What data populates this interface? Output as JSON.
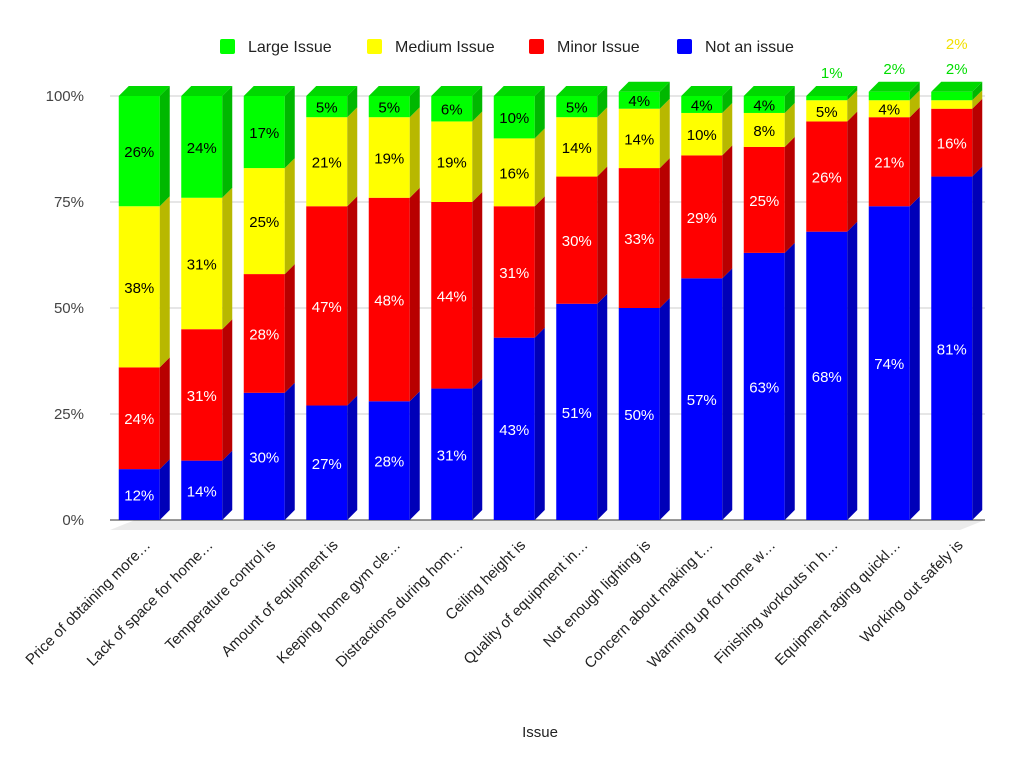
{
  "chart_data": {
    "type": "bar",
    "stacked": true,
    "normalized": true,
    "title": "",
    "xlabel": "Issue",
    "ylabel": "",
    "ylim": [
      0,
      100
    ],
    "yticks": [
      "0%",
      "25%",
      "50%",
      "75%",
      "100%"
    ],
    "legend_position": "top",
    "categories": [
      "Price of obtaining more…",
      "Lack of space for home…",
      "Temperature control is",
      "Amount of equipment is",
      "Keeping home gym cle…",
      "Distractions during hom…",
      "Ceiling height is",
      "Quality of equipment in…",
      "Not enough lighting is",
      "Concern about making t…",
      "Warming up for home w…",
      "Finishing workouts in h…",
      "Equipment aging quickl…",
      "Working out safely is"
    ],
    "series": [
      {
        "name": "Not an issue",
        "color": "#0000ff",
        "label_color": "#ffffff",
        "values": [
          12,
          14,
          30,
          27,
          28,
          31,
          43,
          51,
          50,
          57,
          63,
          68,
          74,
          81
        ]
      },
      {
        "name": "Minor Issue",
        "color": "#ff0000",
        "label_color": "#ffffff",
        "values": [
          24,
          31,
          28,
          47,
          48,
          44,
          31,
          30,
          33,
          29,
          25,
          26,
          21,
          16
        ]
      },
      {
        "name": "Medium Issue",
        "color": "#ffff00",
        "label_color": "#000000",
        "values": [
          38,
          31,
          25,
          21,
          19,
          19,
          16,
          14,
          14,
          10,
          8,
          5,
          4,
          2
        ]
      },
      {
        "name": "Large Issue",
        "color": "#00ff00",
        "label_color": "#000000",
        "values": [
          26,
          24,
          17,
          5,
          5,
          6,
          10,
          5,
          4,
          4,
          4,
          1,
          2,
          2
        ]
      }
    ],
    "legend_order": [
      "Large Issue",
      "Medium Issue",
      "Minor Issue",
      "Not an issue"
    ]
  }
}
